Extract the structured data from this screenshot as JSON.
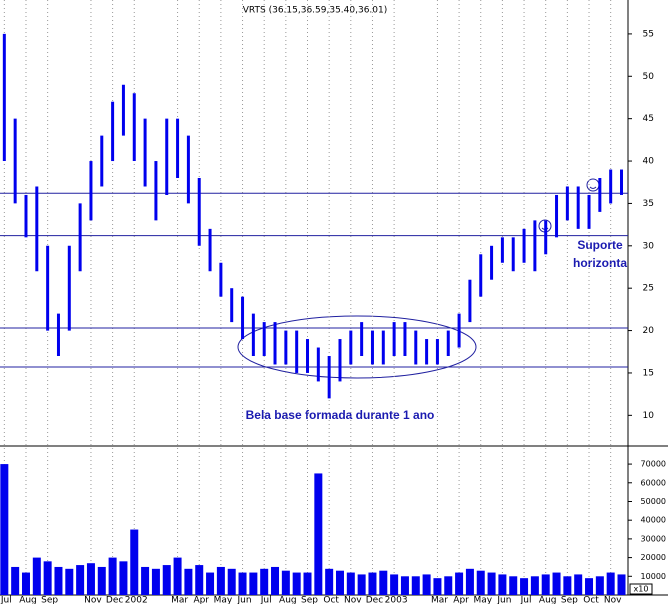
{
  "chart_data": {
    "type": "hilo",
    "title": "VRTS (36.15,36.59,35.40,36.01)",
    "annotations": [
      "Bela base formada durante 1 ano",
      "Suporte",
      "horizonta"
    ],
    "x": [
      0,
      0.5,
      1,
      1.5,
      2,
      2.5,
      3,
      3.5,
      4,
      4.5,
      5,
      5.5,
      6,
      6.5,
      7,
      7.5,
      8,
      8.5,
      9,
      9.5,
      10,
      10.5,
      11,
      11.5,
      12,
      12.5,
      13,
      13.5,
      14,
      14.5,
      15,
      15.5,
      16,
      16.5,
      17,
      17.5,
      18,
      18.5,
      19,
      19.5,
      20,
      20.5,
      21,
      21.5,
      22,
      22.5,
      23,
      23.5,
      24,
      24.5,
      25,
      25.5,
      26,
      26.5,
      27,
      27.5,
      28,
      28.5
    ],
    "high": [
      55,
      45,
      36,
      37,
      30,
      22,
      30,
      35,
      40,
      43,
      47,
      49,
      48,
      45,
      40,
      45,
      45,
      43,
      38,
      32,
      28,
      25,
      24,
      22,
      21,
      21,
      20,
      20,
      19,
      18,
      17,
      19,
      20,
      21,
      20,
      20,
      21,
      21,
      20,
      19,
      19,
      20,
      22,
      26,
      29,
      30,
      31,
      31,
      32,
      33,
      33,
      36,
      37,
      37,
      36,
      38,
      39,
      39
    ],
    "low": [
      40,
      35,
      31,
      27,
      20,
      17,
      20,
      27,
      33,
      37,
      40,
      43,
      40,
      37,
      33,
      36,
      38,
      35,
      30,
      27,
      24,
      21,
      19,
      17,
      17,
      16,
      16,
      15,
      15,
      14,
      12,
      14,
      16,
      17,
      16,
      16,
      17,
      17,
      16,
      16,
      16,
      17,
      18,
      21,
      24,
      26,
      28,
      27,
      28,
      27,
      29,
      31,
      33,
      32,
      32,
      34,
      35,
      36
    ],
    "color": "#0000ee",
    "reference_lines": [
      36.2,
      31.2,
      20.3,
      15.7
    ],
    "reference_color": "#2020a0",
    "xlim": [
      -0.2,
      28.8
    ],
    "xticks": [
      {
        "value": 0,
        "label": "Jul"
      },
      {
        "value": 1,
        "label": "Aug"
      },
      {
        "value": 2,
        "label": "Sep"
      },
      {
        "value": 4,
        "label": "Nov"
      },
      {
        "value": 5,
        "label": "Dec"
      },
      {
        "value": 6,
        "label": "2002"
      },
      {
        "value": 8,
        "label": "Mar"
      },
      {
        "value": 9,
        "label": "Apr"
      },
      {
        "value": 10,
        "label": "May"
      },
      {
        "value": 11,
        "label": "Jun"
      },
      {
        "value": 12,
        "label": "Jul"
      },
      {
        "value": 13,
        "label": "Aug"
      },
      {
        "value": 14,
        "label": "Sep"
      },
      {
        "value": 15,
        "label": "Oct"
      },
      {
        "value": 16,
        "label": "Nov"
      },
      {
        "value": 17,
        "label": "Dec"
      },
      {
        "value": 18,
        "label": "2003"
      },
      {
        "value": 20,
        "label": "Mar"
      },
      {
        "value": 21,
        "label": "Apr"
      },
      {
        "value": 22,
        "label": "May"
      },
      {
        "value": 23,
        "label": "Jun"
      },
      {
        "value": 24,
        "label": "Jul"
      },
      {
        "value": 25,
        "label": "Aug"
      },
      {
        "value": 26,
        "label": "Sep"
      },
      {
        "value": 27,
        "label": "Oct"
      },
      {
        "value": 28,
        "label": "Nov"
      }
    ],
    "ylim": [
      6.5,
      59
    ],
    "yticks": [
      10,
      15,
      20,
      25,
      30,
      35,
      40,
      45,
      50,
      55
    ],
    "grid": true,
    "volume": {
      "values": [
        70000,
        15000,
        12000,
        20000,
        18000,
        15000,
        14000,
        16000,
        17000,
        15000,
        20000,
        18000,
        35000,
        15000,
        14000,
        16000,
        20000,
        14000,
        16000,
        12000,
        15000,
        14000,
        12000,
        12000,
        14000,
        15000,
        13000,
        12000,
        12000,
        65000,
        14000,
        13000,
        12000,
        11000,
        12000,
        13000,
        11000,
        10000,
        10000,
        11000,
        9000,
        10000,
        12000,
        14000,
        13000,
        12000,
        11000,
        10000,
        9000,
        10000,
        11000,
        12000,
        10000,
        11000,
        9000,
        10000,
        12000,
        11000
      ],
      "ylim": [
        0,
        78600
      ],
      "yticks": [
        10000,
        20000,
        30000,
        40000,
        50000,
        60000,
        70000
      ],
      "unit_label": "x10"
    }
  }
}
